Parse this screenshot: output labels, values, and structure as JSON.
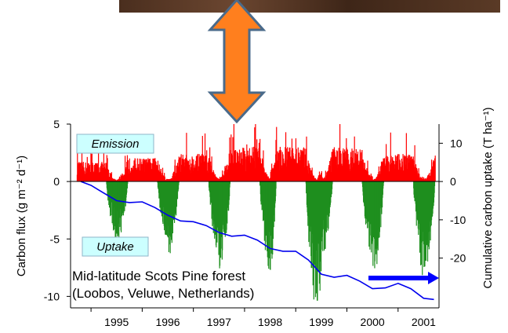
{
  "chart_data": {
    "type": "bar",
    "title": "",
    "ylabel_left": "Carbon flux (g m⁻² d⁻¹)",
    "ylabel_right": "Cumulative carbon uptake (T ha⁻¹)",
    "xlabel": "",
    "ylim_left": [
      -11,
      5
    ],
    "ylim_right": [
      -33,
      15
    ],
    "left_ticks": [
      5,
      0,
      -5,
      -10
    ],
    "right_ticks": [
      10,
      0,
      -10,
      -20
    ],
    "x_ticks": [
      "1995",
      "1996",
      "1997",
      "1998",
      "1999",
      "2000",
      "2001"
    ],
    "xlim": [
      1994.6,
      2001.8
    ],
    "annotations": {
      "emission": "Emission",
      "uptake": "Uptake",
      "site_line1": "Mid-latitude Scots Pine forest",
      "site_line2": "(Loobos, Veluwe, Netherlands)"
    },
    "daily_flux_envelope": {
      "description_units": "g C m-2 d-1",
      "seasonal_max_emission": [
        2.5,
        3.0,
        3.5,
        4.4,
        4.4,
        4.3,
        3.5
      ],
      "seasonal_min_uptake": [
        -5.0,
        -5.1,
        -6.4,
        -7.6,
        -10.8,
        -6.3,
        -8.0
      ],
      "uptake_trough_centres": [
        1995.5,
        1996.5,
        1997.5,
        1998.5,
        1999.4,
        2000.5,
        2001.5
      ]
    },
    "series": [
      {
        "name": "",
        "axis": "right",
        "x": [
          1994.8,
          1995.0,
          1995.25,
          1995.5,
          1995.75,
          1996.0,
          1996.25,
          1996.5,
          1996.75,
          1997.0,
          1997.25,
          1997.5,
          1997.75,
          1998.0,
          1998.25,
          1998.5,
          1998.75,
          1999.0,
          1999.25,
          1999.5,
          1999.75,
          2000.0,
          2000.25,
          2000.5,
          2000.75,
          2001.0,
          2001.25,
          2001.5,
          2001.7
        ],
        "y": [
          0,
          -1,
          -3,
          -5,
          -5.5,
          -5.3,
          -6.8,
          -8.8,
          -10.3,
          -10.5,
          -11.5,
          -13.3,
          -14.3,
          -14.0,
          -15.3,
          -17.5,
          -18.2,
          -18.2,
          -20.5,
          -24.2,
          -25.0,
          -24.5,
          -26.0,
          -28.0,
          -27.8,
          -26.6,
          -28.0,
          -30.5,
          -30.8
        ]
      }
    ],
    "colors": {
      "emission": "#ff0000",
      "uptake": "#1f8f1f",
      "cumulative": "#0000ee",
      "label_box": "#ccffff",
      "arrow_fill": "#ff7f1e",
      "arrow_stroke": "#4a6a8a",
      "blue_arrow": "#0000ff"
    }
  }
}
